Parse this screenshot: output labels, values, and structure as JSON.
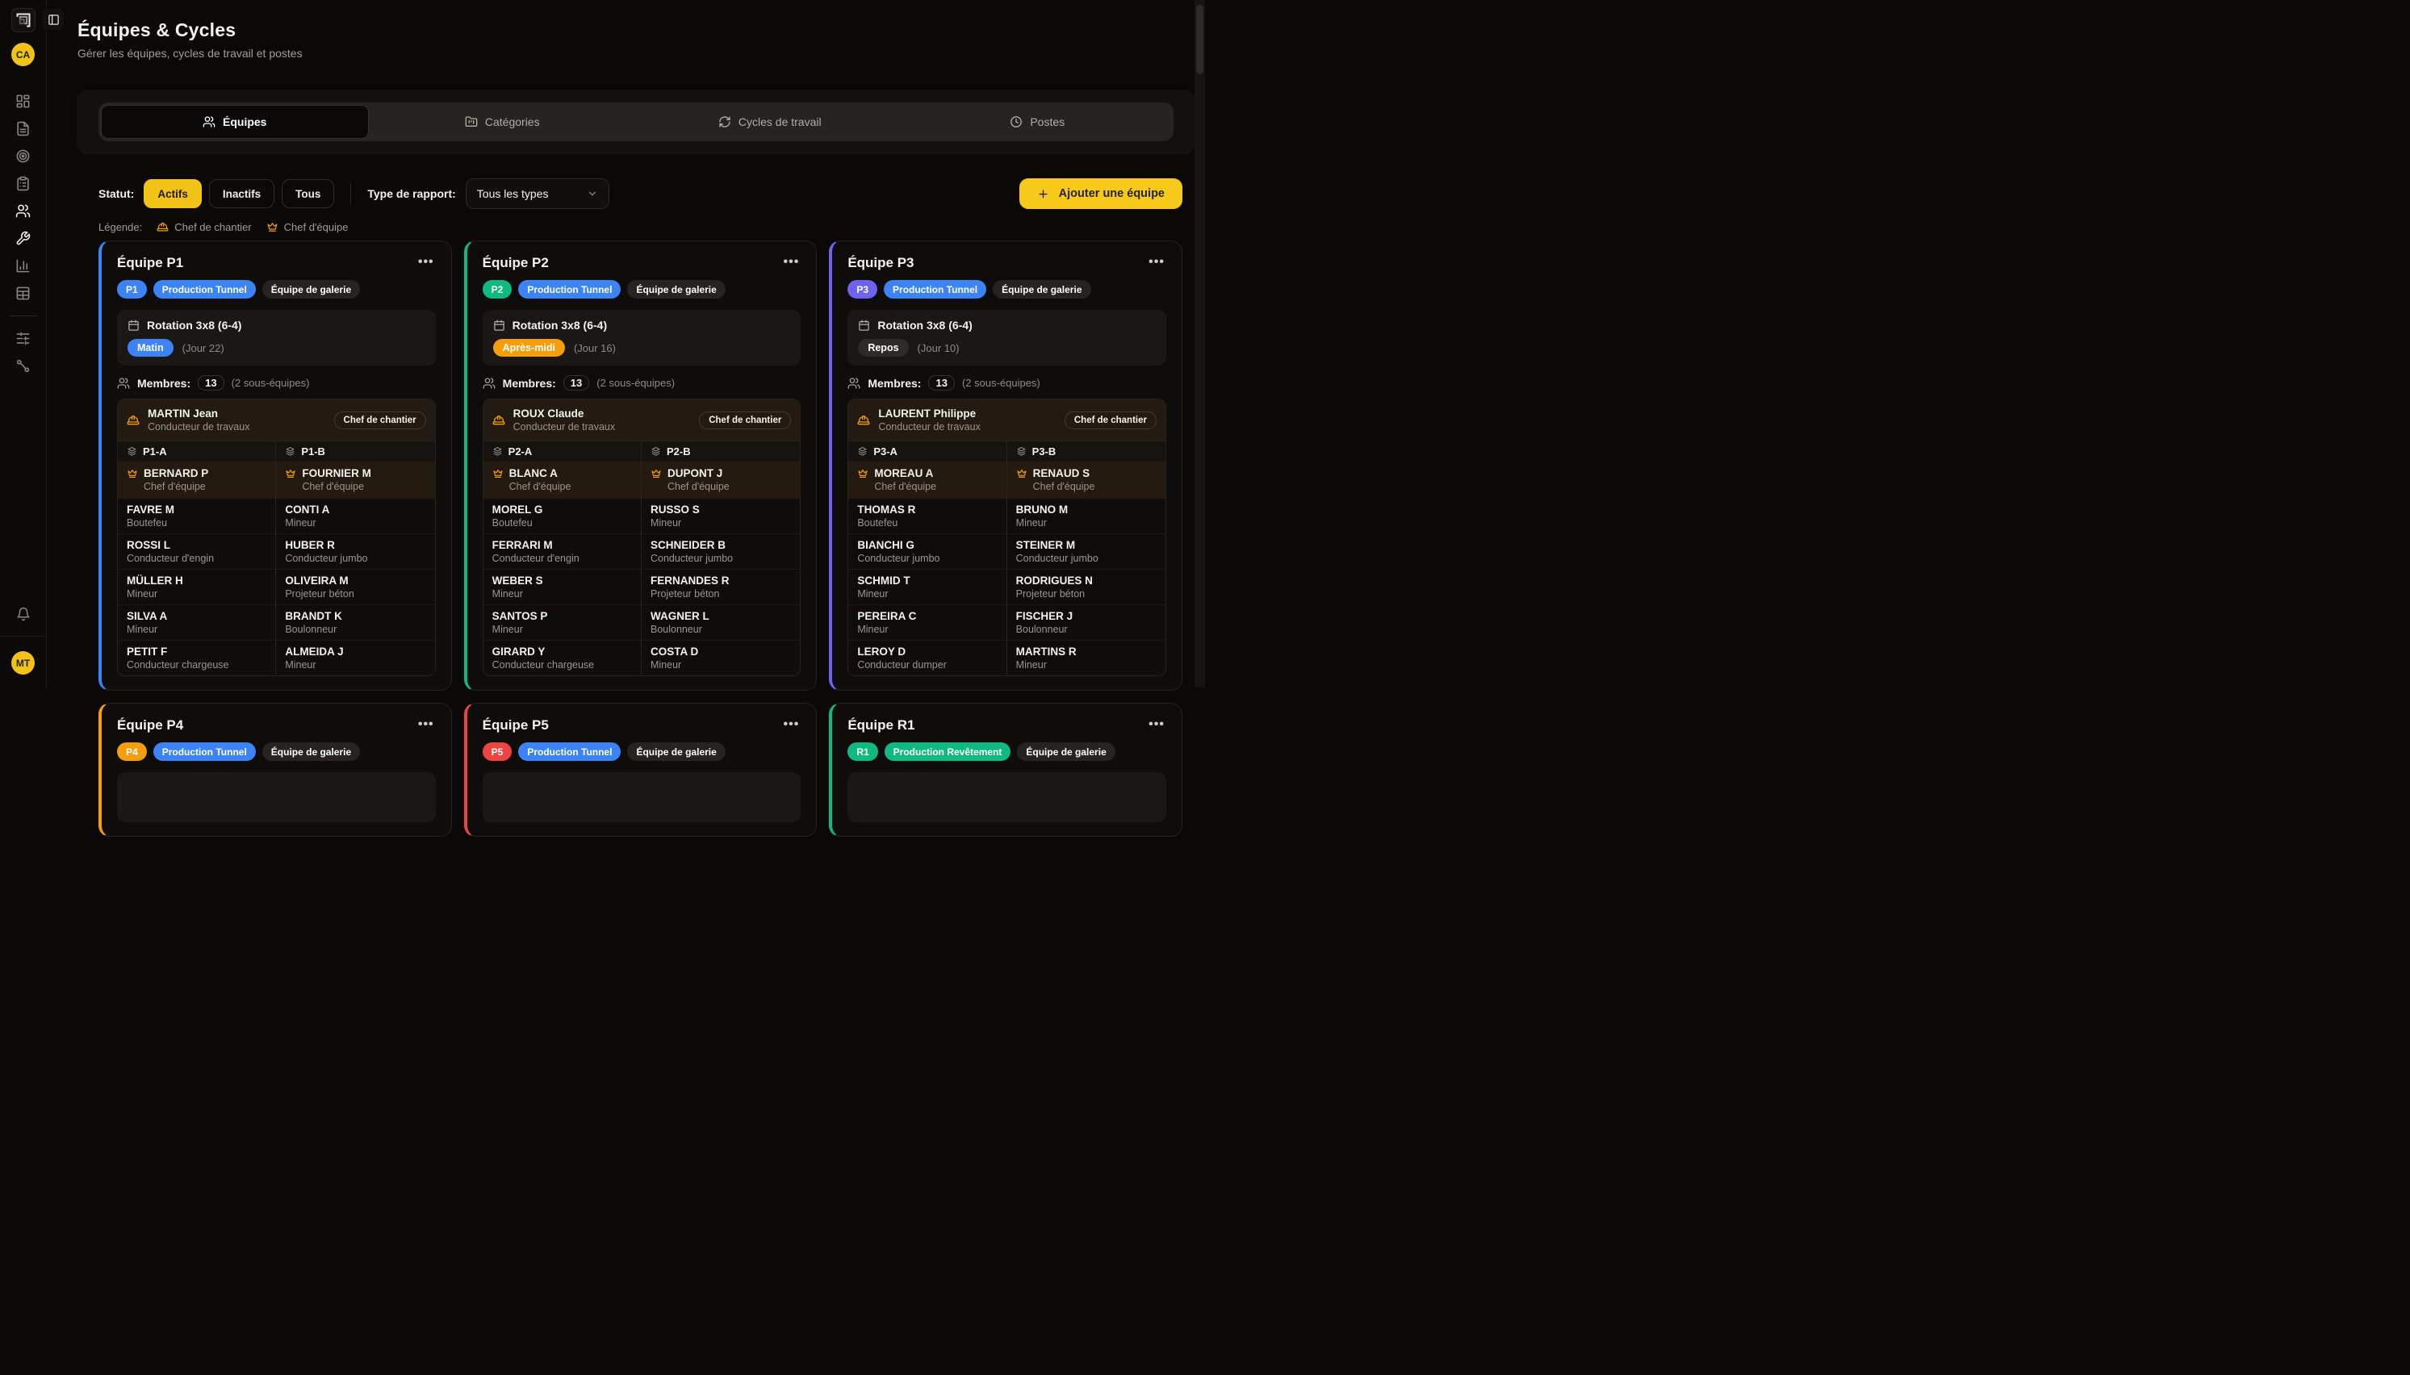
{
  "sidebar": {
    "avatar_top": "CA",
    "avatar_bottom": "MT",
    "items": [
      {
        "icon": "dashboard-icon",
        "active": false
      },
      {
        "icon": "file-text-icon",
        "active": false
      },
      {
        "icon": "target-icon",
        "active": false
      },
      {
        "icon": "clipboard-icon",
        "active": false
      },
      {
        "icon": "users-icon",
        "active": true
      },
      {
        "icon": "wrench-icon",
        "active": true
      },
      {
        "icon": "bar-chart-icon",
        "active": false
      },
      {
        "icon": "table-icon",
        "active": false
      },
      {
        "icon": "divider",
        "active": false
      },
      {
        "icon": "sliders-icon",
        "active": false
      },
      {
        "icon": "route-icon",
        "active": false
      }
    ]
  },
  "header": {
    "title": "Équipes & Cycles",
    "subtitle": "Gérer les équipes, cycles de travail et postes"
  },
  "tabs": [
    {
      "label": "Équipes",
      "icon": "users-icon",
      "active": true
    },
    {
      "label": "Catégories",
      "icon": "folder-icon",
      "active": false
    },
    {
      "label": "Cycles de travail",
      "icon": "refresh-icon",
      "active": false
    },
    {
      "label": "Postes",
      "icon": "clock-icon",
      "active": false
    }
  ],
  "toolbar": {
    "status_label": "Statut:",
    "status_options": [
      {
        "label": "Actifs",
        "active": true
      },
      {
        "label": "Inactifs",
        "active": false
      },
      {
        "label": "Tous",
        "active": false
      }
    ],
    "report_label": "Type de rapport:",
    "report_value": "Tous les types",
    "add_button": "Ajouter une équipe"
  },
  "legend": {
    "label": "Légende:",
    "items": [
      {
        "icon": "hard-hat-icon",
        "label": "Chef de chantier"
      },
      {
        "icon": "crown-icon",
        "label": "Chef d'équipe"
      }
    ]
  },
  "colors": {
    "blue": "#3c83f6",
    "green": "#10b981",
    "purple": "#6e63f1",
    "orange": "#f59e0b",
    "red": "#ef4444",
    "neutral": "#2e2a27",
    "yellow": "#f2c316"
  },
  "teams": [
    {
      "name": "Équipe P1",
      "menu": "...",
      "accent": "#3c83f6",
      "code": "P1",
      "code_color": "#3c83f6",
      "category": "Production Tunnel",
      "category_color": "#3c83f6",
      "type_badge": "Équipe de galerie",
      "rotation": {
        "title": "Rotation 3x8 (6-4)",
        "shift": "Matin",
        "shift_color": "#3c83f6",
        "day": "(Jour 22)"
      },
      "members_count": "13",
      "members_label": "Membres:",
      "members_note": "(2 sous-équipes)",
      "chief": {
        "name": "MARTIN Jean",
        "role": "Conducteur de travaux",
        "badge": "Chef de chantier"
      },
      "subteams": [
        {
          "name": "P1-A",
          "leader": {
            "name": "BERNARD P",
            "role": "Chef d'équipe"
          },
          "members": [
            {
              "name": "FAVRE M",
              "role": "Boutefeu"
            },
            {
              "name": "ROSSI L",
              "role": "Conducteur d'engin"
            },
            {
              "name": "MÜLLER H",
              "role": "Mineur"
            },
            {
              "name": "SILVA A",
              "role": "Mineur"
            },
            {
              "name": "PETIT F",
              "role": "Conducteur chargeuse"
            }
          ]
        },
        {
          "name": "P1-B",
          "leader": {
            "name": "FOURNIER M",
            "role": "Chef d'équipe"
          },
          "members": [
            {
              "name": "CONTI A",
              "role": "Mineur"
            },
            {
              "name": "HUBER R",
              "role": "Conducteur jumbo"
            },
            {
              "name": "OLIVEIRA M",
              "role": "Projeteur béton"
            },
            {
              "name": "BRANDT K",
              "role": "Boulonneur"
            },
            {
              "name": "ALMEIDA J",
              "role": "Mineur"
            }
          ]
        }
      ]
    },
    {
      "name": "Équipe P2",
      "menu": "...",
      "accent": "#10b981",
      "code": "P2",
      "code_color": "#10b981",
      "category": "Production Tunnel",
      "category_color": "#3c83f6",
      "type_badge": "Équipe de galerie",
      "rotation": {
        "title": "Rotation 3x8 (6-4)",
        "shift": "Après-midi",
        "shift_color": "#f59e0b",
        "day": "(Jour 16)"
      },
      "members_count": "13",
      "members_label": "Membres:",
      "members_note": "(2 sous-équipes)",
      "chief": {
        "name": "ROUX Claude",
        "role": "Conducteur de travaux",
        "badge": "Chef de chantier"
      },
      "subteams": [
        {
          "name": "P2-A",
          "leader": {
            "name": "BLANC A",
            "role": "Chef d'équipe"
          },
          "members": [
            {
              "name": "MOREL G",
              "role": "Boutefeu"
            },
            {
              "name": "FERRARI M",
              "role": "Conducteur d'engin"
            },
            {
              "name": "WEBER S",
              "role": "Mineur"
            },
            {
              "name": "SANTOS P",
              "role": "Mineur"
            },
            {
              "name": "GIRARD Y",
              "role": "Conducteur chargeuse"
            }
          ]
        },
        {
          "name": "P2-B",
          "leader": {
            "name": "DUPONT J",
            "role": "Chef d'équipe"
          },
          "members": [
            {
              "name": "RUSSO S",
              "role": "Mineur"
            },
            {
              "name": "SCHNEIDER B",
              "role": "Conducteur jumbo"
            },
            {
              "name": "FERNANDES R",
              "role": "Projeteur béton"
            },
            {
              "name": "WAGNER L",
              "role": "Boulonneur"
            },
            {
              "name": "COSTA D",
              "role": "Mineur"
            }
          ]
        }
      ]
    },
    {
      "name": "Équipe P3",
      "menu": "...",
      "accent": "#6e63f1",
      "code": "P3",
      "code_color": "#6e63f1",
      "category": "Production Tunnel",
      "category_color": "#3c83f6",
      "type_badge": "Équipe de galerie",
      "rotation": {
        "title": "Rotation 3x8 (6-4)",
        "shift": "Repos",
        "shift_color": "#2e2a27",
        "day": "(Jour 10)"
      },
      "members_count": "13",
      "members_label": "Membres:",
      "members_note": "(2 sous-équipes)",
      "chief": {
        "name": "LAURENT Philippe",
        "role": "Conducteur de travaux",
        "badge": "Chef de chantier"
      },
      "subteams": [
        {
          "name": "P3-A",
          "leader": {
            "name": "MOREAU A",
            "role": "Chef d'équipe"
          },
          "members": [
            {
              "name": "THOMAS R",
              "role": "Boutefeu"
            },
            {
              "name": "BIANCHI G",
              "role": "Conducteur jumbo"
            },
            {
              "name": "SCHMID T",
              "role": "Mineur"
            },
            {
              "name": "PEREIRA C",
              "role": "Mineur"
            },
            {
              "name": "LEROY D",
              "role": "Conducteur dumper"
            }
          ]
        },
        {
          "name": "P3-B",
          "leader": {
            "name": "RENAUD S",
            "role": "Chef d'équipe"
          },
          "members": [
            {
              "name": "BRUNO M",
              "role": "Mineur"
            },
            {
              "name": "STEINER M",
              "role": "Conducteur jumbo"
            },
            {
              "name": "RODRIGUES N",
              "role": "Projeteur béton"
            },
            {
              "name": "FISCHER J",
              "role": "Boulonneur"
            },
            {
              "name": "MARTINS R",
              "role": "Mineur"
            }
          ]
        }
      ]
    },
    {
      "name": "Équipe P4",
      "menu": "...",
      "accent": "#f59e0b",
      "code": "P4",
      "code_color": "#f59e0b",
      "category": "Production Tunnel",
      "category_color": "#3c83f6",
      "type_badge": "Équipe de galerie",
      "rotation": null,
      "subteams": null
    },
    {
      "name": "Équipe P5",
      "menu": "...",
      "accent": "#ef4444",
      "code": "P5",
      "code_color": "#ef4444",
      "category": "Production Tunnel",
      "category_color": "#3c83f6",
      "type_badge": "Équipe de galerie",
      "rotation": null,
      "subteams": null
    },
    {
      "name": "Équipe R1",
      "menu": "...",
      "accent": "#10b981",
      "code": "R1",
      "code_color": "#10b981",
      "category": "Production Revêtement",
      "category_color": "#10b981",
      "type_badge": "Équipe de galerie",
      "rotation": null,
      "subteams": null
    }
  ]
}
